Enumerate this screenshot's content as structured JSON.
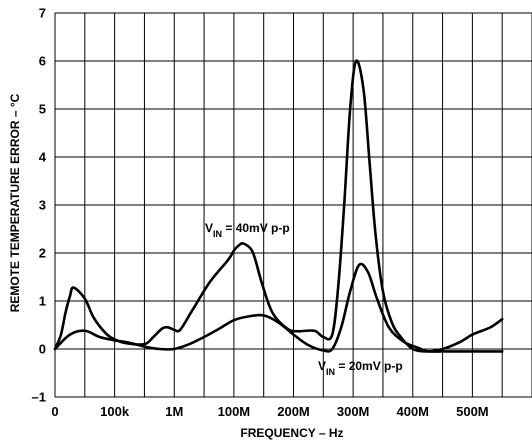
{
  "chart_data": {
    "type": "line",
    "title": "",
    "xlabel": "FREQUENCY – Hz",
    "ylabel": "REMOTE TEMPERATURE ERROR – °C",
    "ylim": [
      -1,
      7
    ],
    "grid": true,
    "x_categories": [
      "0",
      "",
      "100k",
      "",
      "1M",
      "",
      "100M",
      "",
      "200M",
      "",
      "300M",
      "",
      "400M",
      "",
      "500M",
      ""
    ],
    "y_ticks": [
      "–1",
      "0",
      "1",
      "2",
      "3",
      "4",
      "5",
      "6",
      "7"
    ],
    "series": [
      {
        "label_main": "V",
        "label_sub": "IN",
        "label_rest": " = 40mV p-p",
        "x": [
          0,
          0.2,
          0.35,
          0.5,
          0.62,
          1.0,
          1.3,
          1.7,
          2.0,
          2.4,
          3.0,
          3.3,
          3.6,
          3.8,
          4.0,
          4.2,
          4.6,
          5.2,
          5.8,
          6.0,
          6.15,
          6.3,
          6.55,
          6.7,
          6.95,
          7.3,
          7.8,
          8.15,
          8.7,
          9.0,
          9.3,
          9.5,
          9.7,
          9.9,
          10.1,
          10.35,
          10.55,
          10.75,
          11.0,
          11.3,
          11.6,
          12.0,
          12.5,
          13.0,
          13.6,
          14.0,
          14.6,
          15.0
        ],
        "values": [
          0,
          0.3,
          0.75,
          1.1,
          1.28,
          1.05,
          0.65,
          0.33,
          0.2,
          0.12,
          0.1,
          0.25,
          0.43,
          0.45,
          0.4,
          0.4,
          0.8,
          1.4,
          1.85,
          2.05,
          2.15,
          2.2,
          2.1,
          1.9,
          1.35,
          0.75,
          0.42,
          0.37,
          0.38,
          0.25,
          0.3,
          1.3,
          3.0,
          5.0,
          6.0,
          5.4,
          3.9,
          2.4,
          1.2,
          0.55,
          0.25,
          0.0,
          -0.05,
          0.0,
          0.15,
          0.3,
          0.45,
          0.62
        ]
      },
      {
        "label_main": "V",
        "label_sub": "IN",
        "label_rest": " = 20mV p-p",
        "x": [
          0,
          0.5,
          1.0,
          1.5,
          2.0,
          2.5,
          3.0,
          3.5,
          4.0,
          4.5,
          5.0,
          5.5,
          6.0,
          6.5,
          7.0,
          7.5,
          8.0,
          8.5,
          9.0,
          9.3,
          9.6,
          9.9,
          10.2,
          10.5,
          10.8,
          11.2,
          11.7,
          12.2,
          12.5,
          13.0,
          14.0,
          15.0
        ],
        "values": [
          0,
          0.3,
          0.38,
          0.25,
          0.18,
          0.13,
          0.05,
          0.0,
          0.0,
          0.1,
          0.25,
          0.42,
          0.6,
          0.68,
          0.7,
          0.55,
          0.3,
          0.08,
          -0.03,
          0.0,
          0.45,
          1.2,
          1.75,
          1.6,
          1.05,
          0.45,
          0.15,
          0.02,
          -0.05,
          -0.05,
          -0.05,
          -0.05
        ]
      }
    ]
  }
}
